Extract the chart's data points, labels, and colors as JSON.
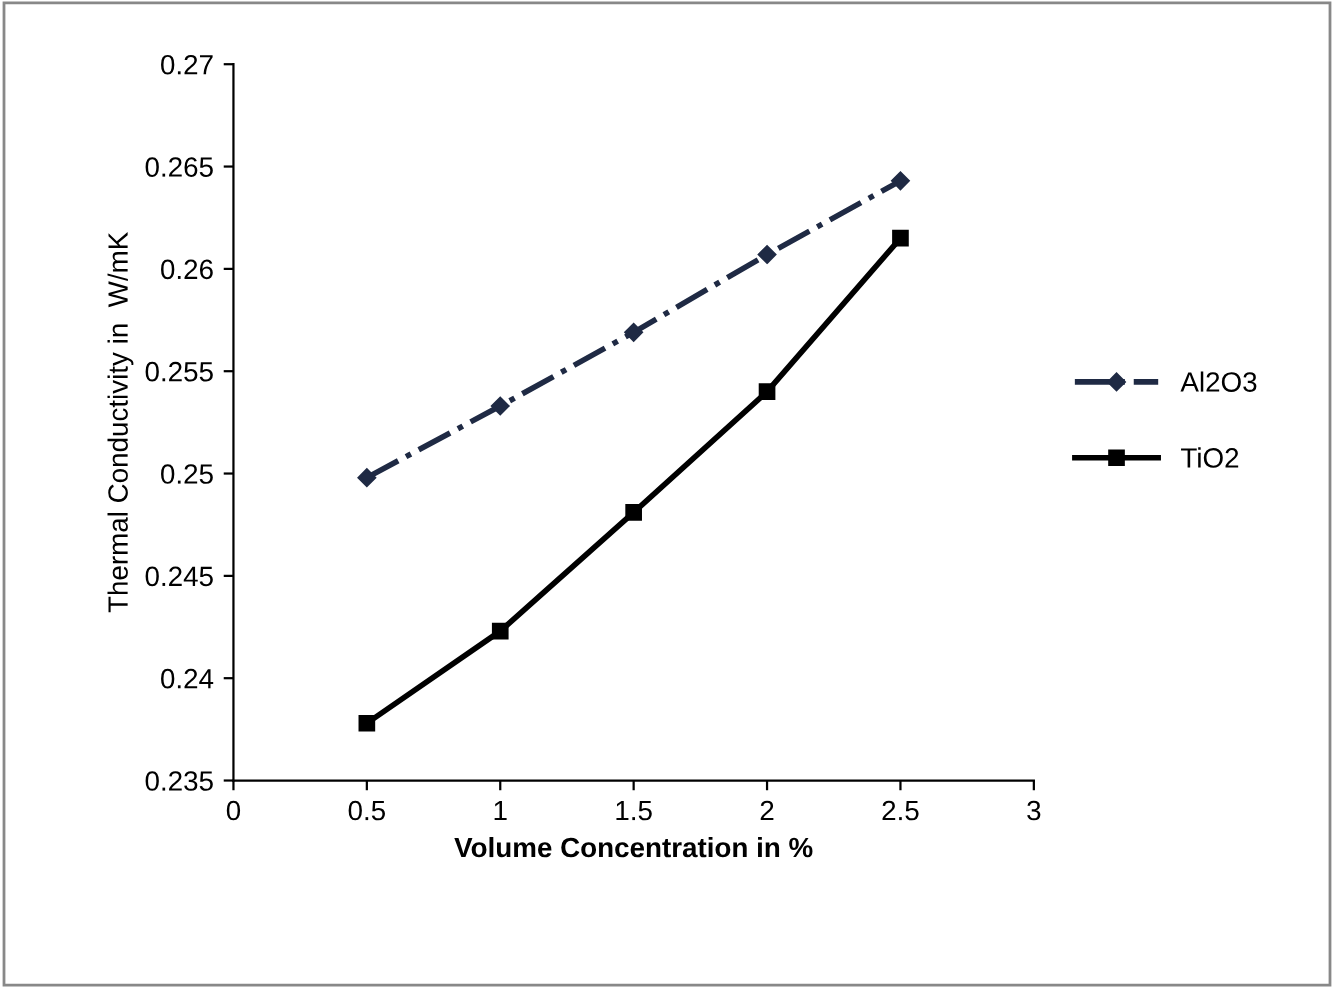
{
  "chart_data": {
    "type": "line",
    "xlabel": "Volume Concentration in %",
    "ylabel": "Thermal Conductivity in  W/mK",
    "x": [
      0.5,
      1,
      1.5,
      2,
      2.5
    ],
    "series": [
      {
        "name": "Al2O3",
        "color": "#1f2a44",
        "values": [
          0.2498,
          0.2533,
          0.2569,
          0.2607,
          0.2643
        ],
        "marker": "diamond",
        "line_style": "dashdot"
      },
      {
        "name": "TiO2",
        "color": "#000000",
        "values": [
          0.2378,
          0.2423,
          0.2481,
          0.254,
          0.2615
        ],
        "marker": "square",
        "line_style": "solid"
      }
    ],
    "xlim": [
      0,
      3
    ],
    "xticks": [
      0,
      0.5,
      1,
      1.5,
      2,
      2.5,
      3
    ],
    "ylim": [
      0.235,
      0.27
    ],
    "yticks": [
      0.235,
      0.24,
      0.245,
      0.25,
      0.255,
      0.26,
      0.265,
      0.27
    ],
    "grid": false,
    "legend": "right"
  }
}
